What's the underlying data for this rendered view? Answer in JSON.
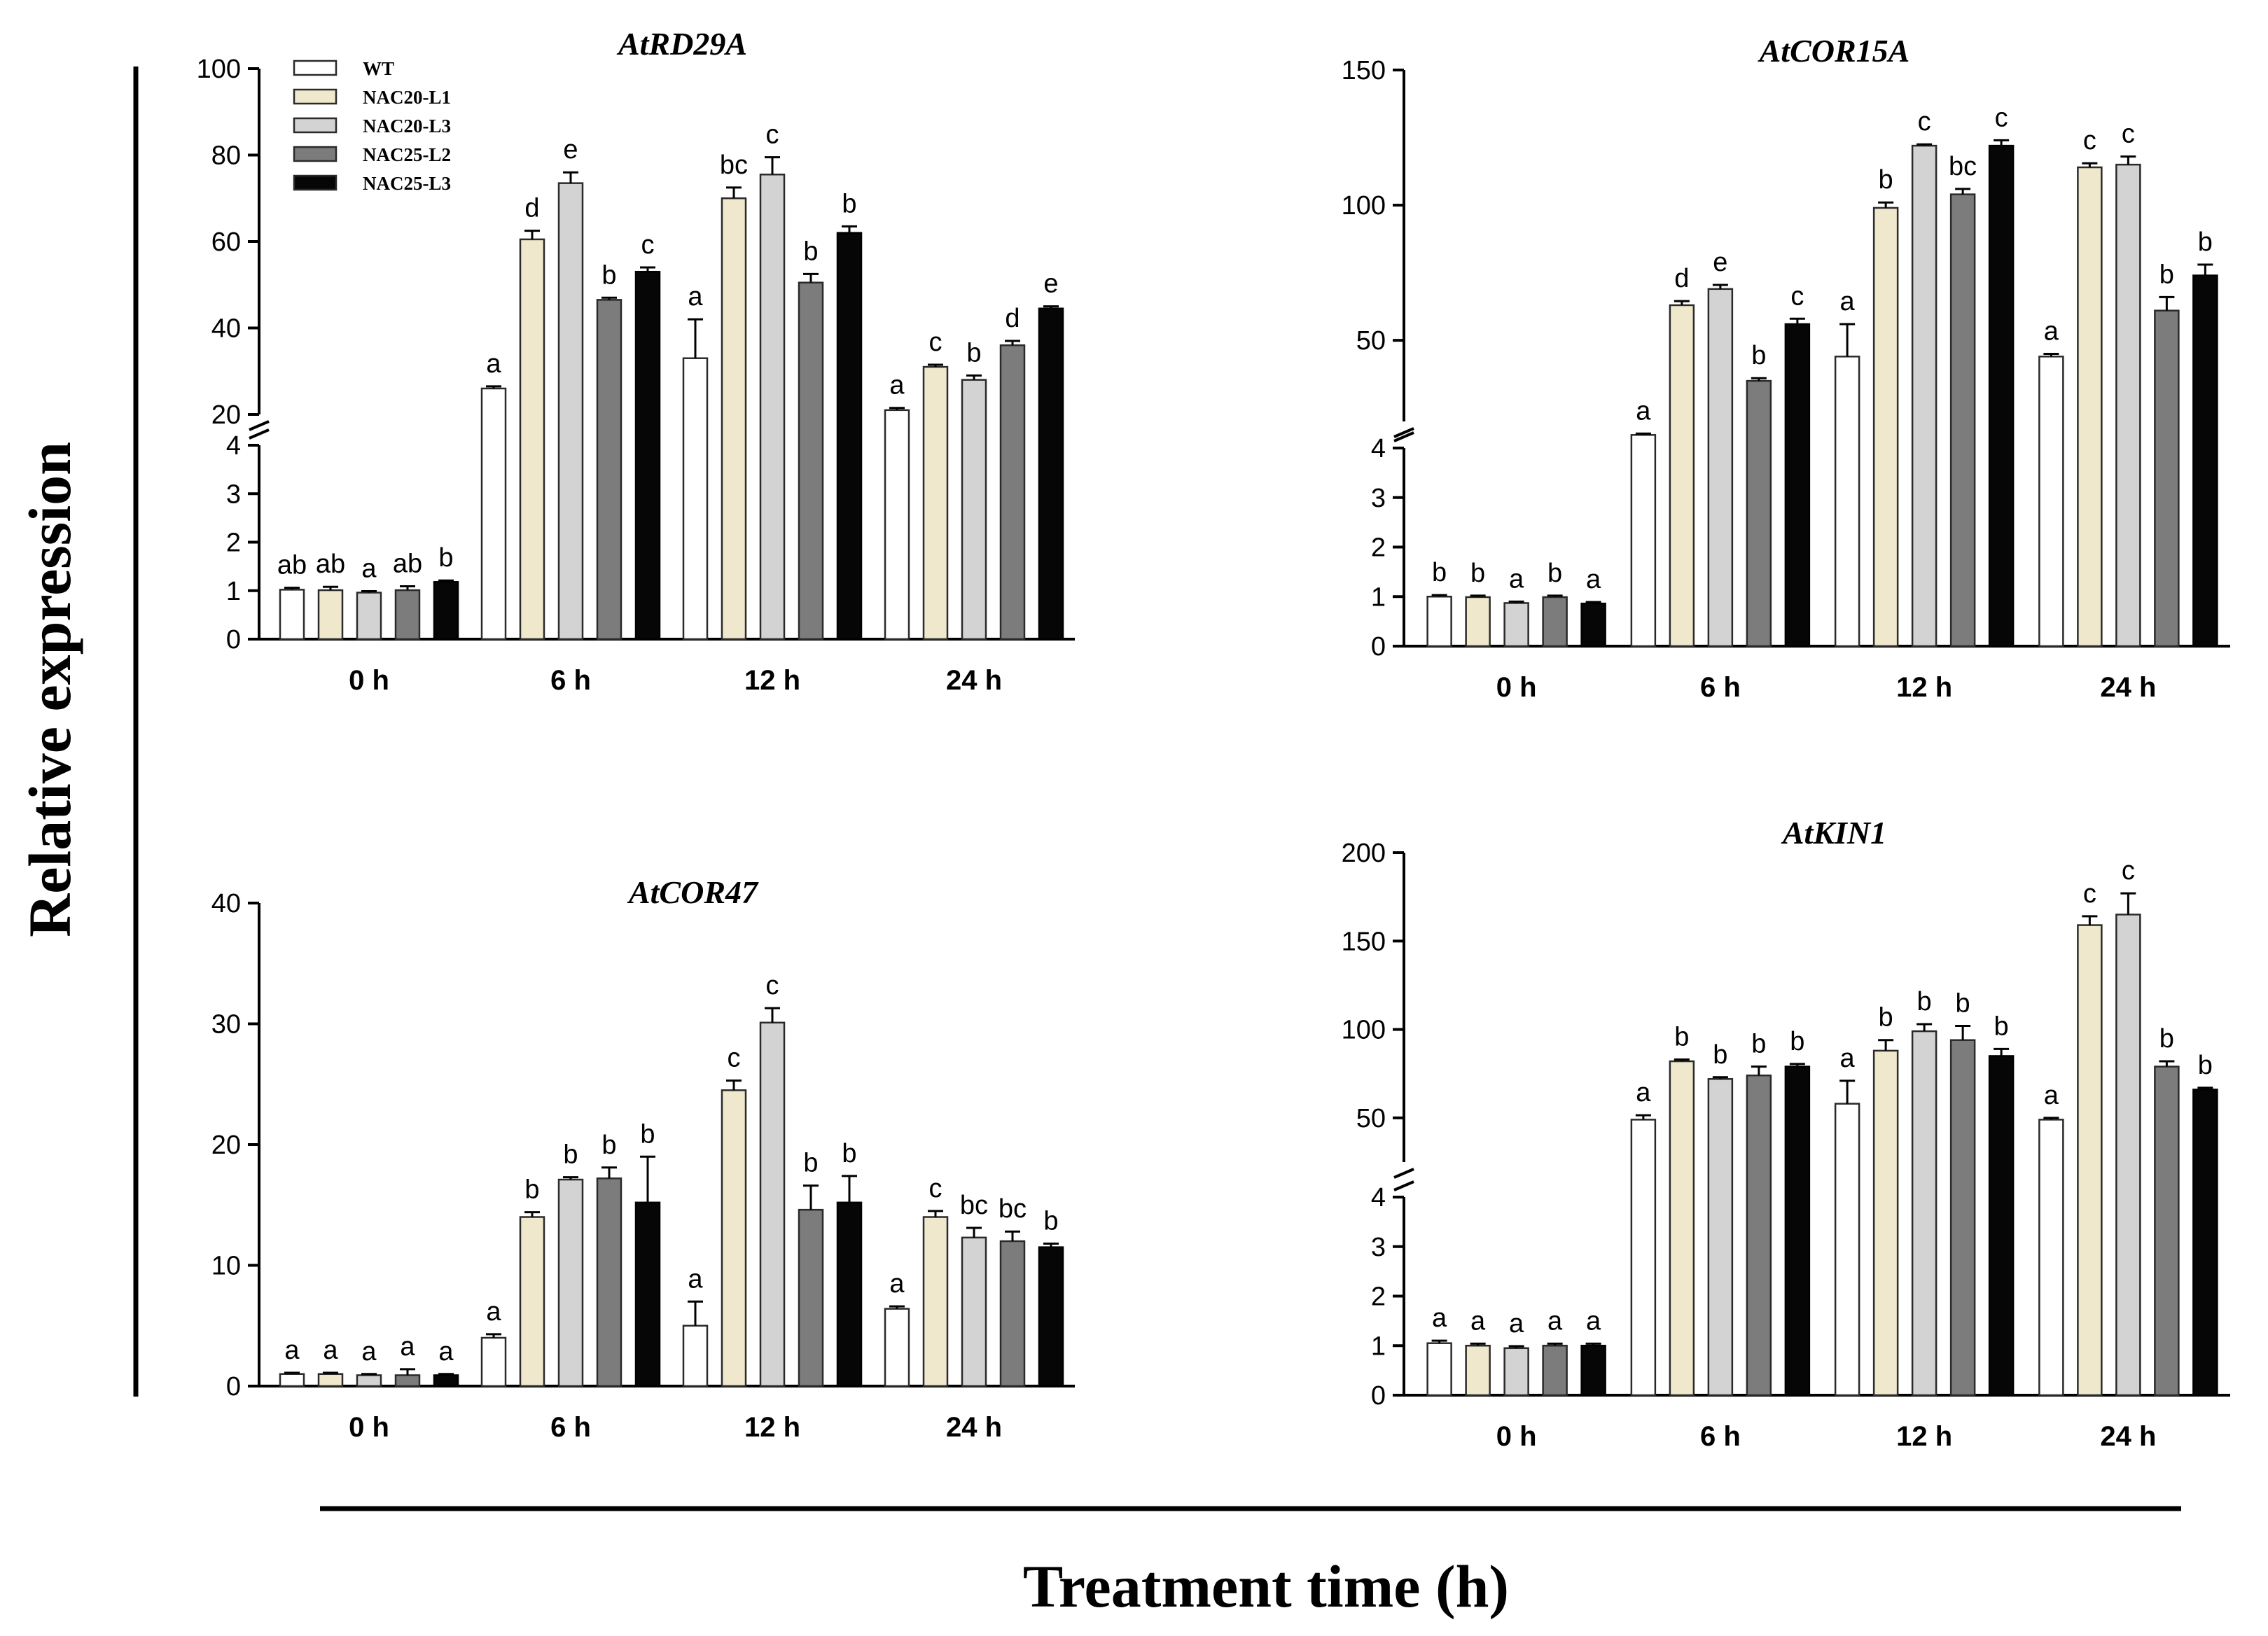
{
  "figure": {
    "ylabel": "Relative expression",
    "xlabel": "Treatment time (h)",
    "legend": [
      {
        "name": "WT",
        "color": "#ffffff"
      },
      {
        "name": "NAC20-L1",
        "color": "#efe8cc"
      },
      {
        "name": "NAC20-L3",
        "color": "#d3d3d3"
      },
      {
        "name": "NAC25-L2",
        "color": "#7c7c7c"
      },
      {
        "name": "NAC25-L3",
        "color": "#060606"
      }
    ]
  },
  "chart_data": [
    {
      "type": "bar",
      "title": "AtRD29A",
      "categories": [
        "0 h",
        "6 h",
        "12 h",
        "24 h"
      ],
      "broken_axis": true,
      "lower_ylim": [
        0,
        4
      ],
      "lower_ticks": [
        0,
        1,
        2,
        3,
        4
      ],
      "upper_ylim": [
        20,
        100
      ],
      "upper_ticks": [
        20,
        40,
        60,
        80,
        100
      ],
      "legend_position": "top-left",
      "series": [
        {
          "name": "WT",
          "values": [
            1.02,
            26,
            33,
            21
          ],
          "errors": [
            0.04,
            0.5,
            9,
            0.5
          ],
          "labels": [
            "ab",
            "a",
            "a",
            "a"
          ]
        },
        {
          "name": "NAC20-L1",
          "values": [
            1.01,
            60.5,
            70,
            31
          ],
          "errors": [
            0.07,
            2,
            2.5,
            0.5
          ],
          "labels": [
            "ab",
            "d",
            "bc",
            "c"
          ]
        },
        {
          "name": "NAC20-L3",
          "values": [
            0.96,
            73.5,
            75.5,
            28
          ],
          "errors": [
            0.03,
            2.5,
            4,
            1
          ],
          "labels": [
            "a",
            "e",
            "c",
            "b"
          ]
        },
        {
          "name": "NAC25-L2",
          "values": [
            1.01,
            46.5,
            50.5,
            36
          ],
          "errors": [
            0.08,
            0.5,
            2,
            1
          ],
          "labels": [
            "ab",
            "b",
            "b",
            "d"
          ]
        },
        {
          "name": "NAC25-L3",
          "values": [
            1.18,
            53,
            62,
            44.5
          ],
          "errors": [
            0.03,
            1,
            1.5,
            0.5
          ],
          "labels": [
            "b",
            "c",
            "b",
            "e"
          ]
        }
      ]
    },
    {
      "type": "bar",
      "title": "AtCOR15A",
      "categories": [
        "0 h",
        "6 h",
        "12 h",
        "24 h"
      ],
      "broken_axis": true,
      "lower_ylim": [
        0,
        4
      ],
      "lower_ticks": [
        0,
        1,
        2,
        3,
        4
      ],
      "upper_ylim": [
        20,
        150
      ],
      "upper_ticks": [
        50,
        100,
        150
      ],
      "series": [
        {
          "name": "WT",
          "values": [
            1.0,
            15,
            44,
            44
          ],
          "errors": [
            0.03,
            0.5,
            12,
            1
          ],
          "labels": [
            "b",
            "a",
            "a",
            "a"
          ]
        },
        {
          "name": "NAC20-L1",
          "values": [
            0.99,
            63,
            99,
            114
          ],
          "errors": [
            0.03,
            1.5,
            2,
            1.5
          ],
          "labels": [
            "b",
            "d",
            "b",
            "c"
          ]
        },
        {
          "name": "NAC20-L3",
          "values": [
            0.87,
            69,
            122,
            115
          ],
          "errors": [
            0.03,
            1.5,
            0.5,
            3
          ],
          "labels": [
            "a",
            "e",
            "c",
            "c"
          ]
        },
        {
          "name": "NAC25-L2",
          "values": [
            0.99,
            35,
            104,
            61
          ],
          "errors": [
            0.03,
            1,
            2,
            5
          ],
          "labels": [
            "b",
            "b",
            "bc",
            "b"
          ]
        },
        {
          "name": "NAC25-L3",
          "values": [
            0.86,
            56,
            122,
            74
          ],
          "errors": [
            0.03,
            2,
            2,
            4
          ],
          "labels": [
            "a",
            "c",
            "c",
            "b"
          ]
        }
      ]
    },
    {
      "type": "bar",
      "title": "AtCOR47",
      "categories": [
        "0 h",
        "6 h",
        "12 h",
        "24 h"
      ],
      "broken_axis": false,
      "ylim": [
        0,
        40
      ],
      "yticks": [
        0,
        10,
        20,
        30,
        40
      ],
      "series": [
        {
          "name": "WT",
          "values": [
            1.0,
            4.0,
            5.0,
            6.4
          ],
          "errors": [
            0.1,
            0.3,
            2,
            0.2
          ],
          "labels": [
            "a",
            "a",
            "a",
            "a"
          ]
        },
        {
          "name": "NAC20-L1",
          "values": [
            1.0,
            14.0,
            24.5,
            14.0
          ],
          "errors": [
            0.1,
            0.4,
            0.8,
            0.5
          ],
          "labels": [
            "a",
            "b",
            "c",
            "c"
          ]
        },
        {
          "name": "NAC20-L3",
          "values": [
            0.9,
            17.1,
            30.1,
            12.3
          ],
          "errors": [
            0.1,
            0.2,
            1.2,
            0.8
          ],
          "labels": [
            "a",
            "b",
            "c",
            "bc"
          ]
        },
        {
          "name": "NAC25-L2",
          "values": [
            0.9,
            17.2,
            14.6,
            12.0
          ],
          "errors": [
            0.5,
            0.9,
            2,
            0.8
          ],
          "labels": [
            "a",
            "b",
            "b",
            "bc"
          ]
        },
        {
          "name": "NAC25-L3",
          "values": [
            0.9,
            15.2,
            15.2,
            11.5
          ],
          "errors": [
            0.1,
            3.8,
            2.2,
            0.3
          ],
          "labels": [
            "a",
            "b",
            "b",
            "b"
          ]
        }
      ]
    },
    {
      "type": "bar",
      "title": "AtKIN1",
      "categories": [
        "0 h",
        "6 h",
        "12 h",
        "24 h"
      ],
      "broken_axis": true,
      "lower_ylim": [
        0,
        4
      ],
      "lower_ticks": [
        0,
        1,
        2,
        3,
        4
      ],
      "upper_ylim": [
        25,
        200
      ],
      "upper_ticks": [
        50,
        100,
        150,
        200
      ],
      "series": [
        {
          "name": "WT",
          "values": [
            1.05,
            49,
            58,
            49
          ],
          "errors": [
            0.05,
            2.5,
            13,
            1
          ],
          "labels": [
            "a",
            "a",
            "a",
            "a"
          ]
        },
        {
          "name": "NAC20-L1",
          "values": [
            1.0,
            82,
            88,
            159
          ],
          "errors": [
            0.04,
            1,
            6,
            5
          ],
          "labels": [
            "a",
            "b",
            "b",
            "c"
          ]
        },
        {
          "name": "NAC20-L3",
          "values": [
            0.95,
            72,
            99,
            165
          ],
          "errors": [
            0.04,
            1,
            4,
            12
          ],
          "labels": [
            "a",
            "b",
            "b",
            "c"
          ]
        },
        {
          "name": "NAC25-L2",
          "values": [
            1.0,
            74,
            94,
            79
          ],
          "errors": [
            0.04,
            5,
            8,
            3
          ],
          "labels": [
            "a",
            "b",
            "b",
            "b"
          ]
        },
        {
          "name": "NAC25-L3",
          "values": [
            1.0,
            79,
            85,
            66
          ],
          "errors": [
            0.04,
            1.5,
            4,
            1
          ],
          "labels": [
            "a",
            "b",
            "b",
            "b"
          ]
        }
      ]
    }
  ]
}
